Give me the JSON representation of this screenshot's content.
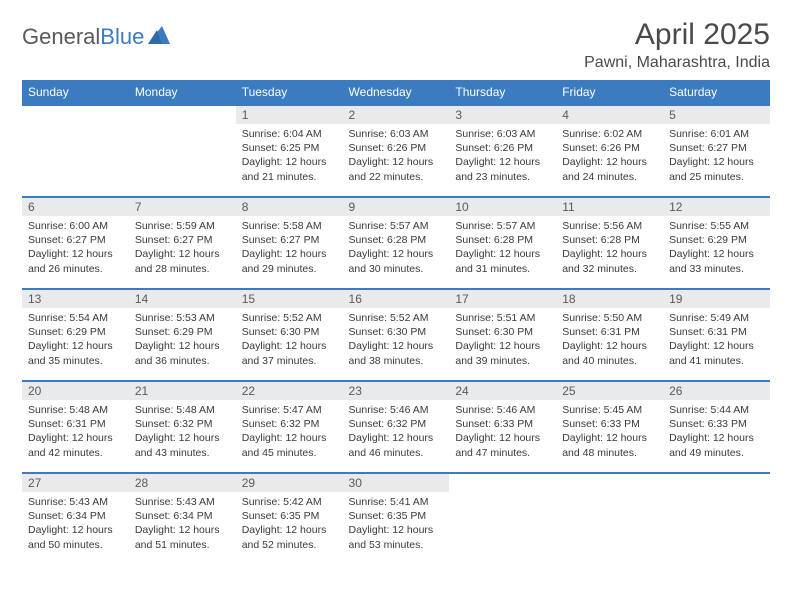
{
  "logo": {
    "text_general": "General",
    "text_blue": "Blue"
  },
  "title": "April 2025",
  "location": "Pawni, Maharashtra, India",
  "theme": {
    "header_bg": "#3b7bbf",
    "header_fg": "#ffffff",
    "daynum_bg": "#e9eaeb",
    "row_border": "#3b7bbf",
    "text_color": "#3a3a3a"
  },
  "weekdays": [
    "Sunday",
    "Monday",
    "Tuesday",
    "Wednesday",
    "Thursday",
    "Friday",
    "Saturday"
  ],
  "weeks": [
    [
      {
        "day": "",
        "sunrise": "",
        "sunset": "",
        "daylight": "",
        "empty": true
      },
      {
        "day": "",
        "sunrise": "",
        "sunset": "",
        "daylight": "",
        "empty": true
      },
      {
        "day": "1",
        "sunrise": "Sunrise: 6:04 AM",
        "sunset": "Sunset: 6:25 PM",
        "daylight": "Daylight: 12 hours and 21 minutes."
      },
      {
        "day": "2",
        "sunrise": "Sunrise: 6:03 AM",
        "sunset": "Sunset: 6:26 PM",
        "daylight": "Daylight: 12 hours and 22 minutes."
      },
      {
        "day": "3",
        "sunrise": "Sunrise: 6:03 AM",
        "sunset": "Sunset: 6:26 PM",
        "daylight": "Daylight: 12 hours and 23 minutes."
      },
      {
        "day": "4",
        "sunrise": "Sunrise: 6:02 AM",
        "sunset": "Sunset: 6:26 PM",
        "daylight": "Daylight: 12 hours and 24 minutes."
      },
      {
        "day": "5",
        "sunrise": "Sunrise: 6:01 AM",
        "sunset": "Sunset: 6:27 PM",
        "daylight": "Daylight: 12 hours and 25 minutes."
      }
    ],
    [
      {
        "day": "6",
        "sunrise": "Sunrise: 6:00 AM",
        "sunset": "Sunset: 6:27 PM",
        "daylight": "Daylight: 12 hours and 26 minutes."
      },
      {
        "day": "7",
        "sunrise": "Sunrise: 5:59 AM",
        "sunset": "Sunset: 6:27 PM",
        "daylight": "Daylight: 12 hours and 28 minutes."
      },
      {
        "day": "8",
        "sunrise": "Sunrise: 5:58 AM",
        "sunset": "Sunset: 6:27 PM",
        "daylight": "Daylight: 12 hours and 29 minutes."
      },
      {
        "day": "9",
        "sunrise": "Sunrise: 5:57 AM",
        "sunset": "Sunset: 6:28 PM",
        "daylight": "Daylight: 12 hours and 30 minutes."
      },
      {
        "day": "10",
        "sunrise": "Sunrise: 5:57 AM",
        "sunset": "Sunset: 6:28 PM",
        "daylight": "Daylight: 12 hours and 31 minutes."
      },
      {
        "day": "11",
        "sunrise": "Sunrise: 5:56 AM",
        "sunset": "Sunset: 6:28 PM",
        "daylight": "Daylight: 12 hours and 32 minutes."
      },
      {
        "day": "12",
        "sunrise": "Sunrise: 5:55 AM",
        "sunset": "Sunset: 6:29 PM",
        "daylight": "Daylight: 12 hours and 33 minutes."
      }
    ],
    [
      {
        "day": "13",
        "sunrise": "Sunrise: 5:54 AM",
        "sunset": "Sunset: 6:29 PM",
        "daylight": "Daylight: 12 hours and 35 minutes."
      },
      {
        "day": "14",
        "sunrise": "Sunrise: 5:53 AM",
        "sunset": "Sunset: 6:29 PM",
        "daylight": "Daylight: 12 hours and 36 minutes."
      },
      {
        "day": "15",
        "sunrise": "Sunrise: 5:52 AM",
        "sunset": "Sunset: 6:30 PM",
        "daylight": "Daylight: 12 hours and 37 minutes."
      },
      {
        "day": "16",
        "sunrise": "Sunrise: 5:52 AM",
        "sunset": "Sunset: 6:30 PM",
        "daylight": "Daylight: 12 hours and 38 minutes."
      },
      {
        "day": "17",
        "sunrise": "Sunrise: 5:51 AM",
        "sunset": "Sunset: 6:30 PM",
        "daylight": "Daylight: 12 hours and 39 minutes."
      },
      {
        "day": "18",
        "sunrise": "Sunrise: 5:50 AM",
        "sunset": "Sunset: 6:31 PM",
        "daylight": "Daylight: 12 hours and 40 minutes."
      },
      {
        "day": "19",
        "sunrise": "Sunrise: 5:49 AM",
        "sunset": "Sunset: 6:31 PM",
        "daylight": "Daylight: 12 hours and 41 minutes."
      }
    ],
    [
      {
        "day": "20",
        "sunrise": "Sunrise: 5:48 AM",
        "sunset": "Sunset: 6:31 PM",
        "daylight": "Daylight: 12 hours and 42 minutes."
      },
      {
        "day": "21",
        "sunrise": "Sunrise: 5:48 AM",
        "sunset": "Sunset: 6:32 PM",
        "daylight": "Daylight: 12 hours and 43 minutes."
      },
      {
        "day": "22",
        "sunrise": "Sunrise: 5:47 AM",
        "sunset": "Sunset: 6:32 PM",
        "daylight": "Daylight: 12 hours and 45 minutes."
      },
      {
        "day": "23",
        "sunrise": "Sunrise: 5:46 AM",
        "sunset": "Sunset: 6:32 PM",
        "daylight": "Daylight: 12 hours and 46 minutes."
      },
      {
        "day": "24",
        "sunrise": "Sunrise: 5:46 AM",
        "sunset": "Sunset: 6:33 PM",
        "daylight": "Daylight: 12 hours and 47 minutes."
      },
      {
        "day": "25",
        "sunrise": "Sunrise: 5:45 AM",
        "sunset": "Sunset: 6:33 PM",
        "daylight": "Daylight: 12 hours and 48 minutes."
      },
      {
        "day": "26",
        "sunrise": "Sunrise: 5:44 AM",
        "sunset": "Sunset: 6:33 PM",
        "daylight": "Daylight: 12 hours and 49 minutes."
      }
    ],
    [
      {
        "day": "27",
        "sunrise": "Sunrise: 5:43 AM",
        "sunset": "Sunset: 6:34 PM",
        "daylight": "Daylight: 12 hours and 50 minutes."
      },
      {
        "day": "28",
        "sunrise": "Sunrise: 5:43 AM",
        "sunset": "Sunset: 6:34 PM",
        "daylight": "Daylight: 12 hours and 51 minutes."
      },
      {
        "day": "29",
        "sunrise": "Sunrise: 5:42 AM",
        "sunset": "Sunset: 6:35 PM",
        "daylight": "Daylight: 12 hours and 52 minutes."
      },
      {
        "day": "30",
        "sunrise": "Sunrise: 5:41 AM",
        "sunset": "Sunset: 6:35 PM",
        "daylight": "Daylight: 12 hours and 53 minutes."
      },
      {
        "day": "",
        "sunrise": "",
        "sunset": "",
        "daylight": "",
        "empty": true
      },
      {
        "day": "",
        "sunrise": "",
        "sunset": "",
        "daylight": "",
        "empty": true
      },
      {
        "day": "",
        "sunrise": "",
        "sunset": "",
        "daylight": "",
        "empty": true
      }
    ]
  ]
}
